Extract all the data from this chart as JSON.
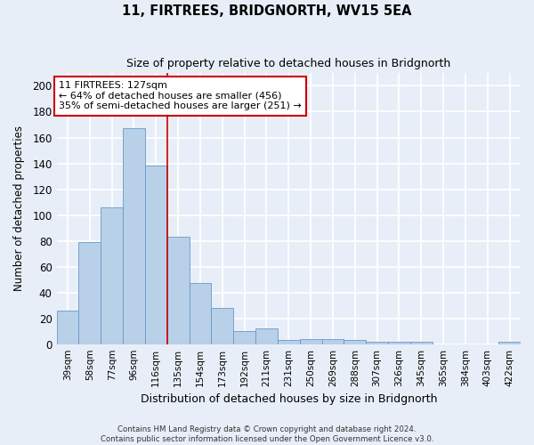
{
  "title": "11, FIRTREES, BRIDGNORTH, WV15 5EA",
  "subtitle": "Size of property relative to detached houses in Bridgnorth",
  "xlabel": "Distribution of detached houses by size in Bridgnorth",
  "ylabel": "Number of detached properties",
  "bar_color": "#b8d0e8",
  "bar_edge_color": "#6699cc",
  "categories": [
    "39sqm",
    "58sqm",
    "77sqm",
    "96sqm",
    "116sqm",
    "135sqm",
    "154sqm",
    "173sqm",
    "192sqm",
    "211sqm",
    "231sqm",
    "250sqm",
    "269sqm",
    "288sqm",
    "307sqm",
    "326sqm",
    "345sqm",
    "365sqm",
    "384sqm",
    "403sqm",
    "422sqm"
  ],
  "values": [
    26,
    79,
    106,
    167,
    138,
    83,
    47,
    28,
    10,
    12,
    3,
    4,
    4,
    3,
    2,
    2,
    2,
    0,
    0,
    0,
    2
  ],
  "ylim": [
    0,
    210
  ],
  "yticks": [
    0,
    20,
    40,
    60,
    80,
    100,
    120,
    140,
    160,
    180,
    200
  ],
  "property_line_x": 4.5,
  "annotation_text": "11 FIRTREES: 127sqm\n← 64% of detached houses are smaller (456)\n35% of semi-detached houses are larger (251) →",
  "annotation_box_color": "#ffffff",
  "annotation_box_edge_color": "#cc0000",
  "footer1": "Contains HM Land Registry data © Crown copyright and database right 2024.",
  "footer2": "Contains public sector information licensed under the Open Government Licence v3.0.",
  "property_line_color": "#cc0000",
  "background_color": "#e8eef8",
  "grid_color": "#ffffff"
}
